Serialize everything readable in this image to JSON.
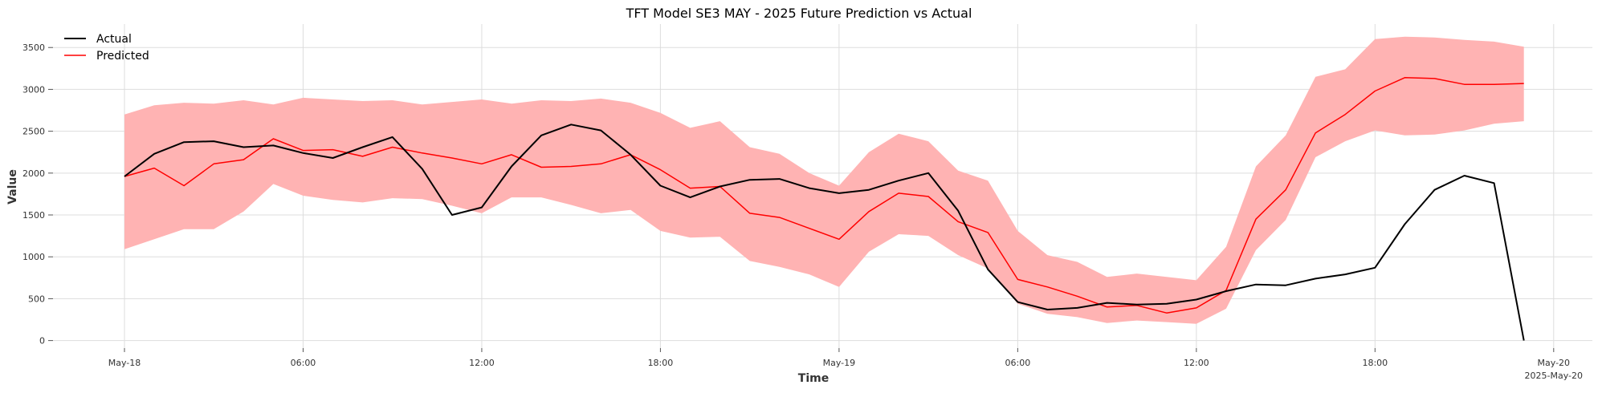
{
  "chart_data": {
    "type": "line",
    "title": "TFT Model SE3 MAY - 2025 Future Prediction vs Actual",
    "xlabel": "Time",
    "ylabel": "Value",
    "x_unit": "hours since May-18 00:00",
    "xlim": [
      -2.4,
      49.3
    ],
    "ylim": [
      -90,
      3780
    ],
    "grid": true,
    "legend_position": "top-left",
    "x_ticks": [
      {
        "value": 0,
        "label": "May-18"
      },
      {
        "value": 6,
        "label": "06:00"
      },
      {
        "value": 12,
        "label": "12:00"
      },
      {
        "value": 18,
        "label": "18:00"
      },
      {
        "value": 24,
        "label": "May-19"
      },
      {
        "value": 30,
        "label": "06:00"
      },
      {
        "value": 36,
        "label": "12:00"
      },
      {
        "value": 42,
        "label": "18:00"
      },
      {
        "value": 48,
        "label": "May-20",
        "sublabel": "2025-May-20"
      }
    ],
    "y_ticks": [
      0,
      500,
      1000,
      1500,
      2000,
      2500,
      3000,
      3500
    ],
    "x": [
      0,
      1,
      2,
      3,
      4,
      5,
      6,
      7,
      8,
      9,
      10,
      11,
      12,
      13,
      14,
      15,
      16,
      17,
      18,
      19,
      20,
      21,
      22,
      23,
      24,
      25,
      26,
      27,
      28,
      29,
      30,
      31,
      32,
      33,
      34,
      35,
      36,
      37,
      38,
      39,
      40,
      41,
      42,
      43,
      44,
      45,
      46,
      47
    ],
    "series": [
      {
        "name": "Actual",
        "color": "#000000",
        "values": [
          1960,
          2230,
          2370,
          2380,
          2310,
          2330,
          2240,
          2180,
          2310,
          2430,
          2050,
          1500,
          1590,
          2080,
          2450,
          2580,
          2510,
          2220,
          1850,
          1710,
          1840,
          1920,
          1930,
          1820,
          1760,
          1800,
          1910,
          2000,
          1550,
          850,
          460,
          370,
          390,
          450,
          430,
          440,
          490,
          590,
          670,
          660,
          740,
          790,
          870,
          1390,
          1800,
          1970,
          1880,
          0
        ]
      },
      {
        "name": "Predicted",
        "color": "#ff0000",
        "values": [
          1960,
          2060,
          1850,
          2110,
          2160,
          2410,
          2270,
          2280,
          2200,
          2310,
          2240,
          2180,
          2110,
          2220,
          2070,
          2080,
          2110,
          2220,
          2040,
          1820,
          1840,
          1520,
          1470,
          1340,
          1210,
          1540,
          1760,
          1720,
          1420,
          1290,
          730,
          640,
          530,
          400,
          420,
          330,
          390,
          600,
          1450,
          1800,
          2480,
          2700,
          2980,
          3140,
          3130,
          3060,
          3060,
          3070
        ],
        "band_lower": [
          1090,
          1210,
          1330,
          1330,
          1540,
          1870,
          1730,
          1680,
          1650,
          1700,
          1690,
          1610,
          1520,
          1710,
          1710,
          1620,
          1520,
          1560,
          1310,
          1230,
          1240,
          950,
          880,
          790,
          640,
          1060,
          1270,
          1250,
          1020,
          860,
          440,
          320,
          280,
          210,
          240,
          220,
          200,
          380,
          1080,
          1440,
          2190,
          2380,
          2510,
          2450,
          2460,
          2510,
          2590,
          2620
        ],
        "band_upper": [
          2700,
          2810,
          2840,
          2830,
          2870,
          2820,
          2900,
          2880,
          2860,
          2870,
          2820,
          2850,
          2880,
          2830,
          2870,
          2860,
          2890,
          2840,
          2720,
          2540,
          2620,
          2310,
          2230,
          2000,
          1850,
          2250,
          2470,
          2380,
          2030,
          1910,
          1310,
          1020,
          940,
          760,
          800,
          760,
          720,
          1120,
          2080,
          2450,
          3150,
          3240,
          3600,
          3630,
          3620,
          3590,
          3570,
          3510
        ],
        "band_color": "#ffb3b3"
      }
    ]
  }
}
